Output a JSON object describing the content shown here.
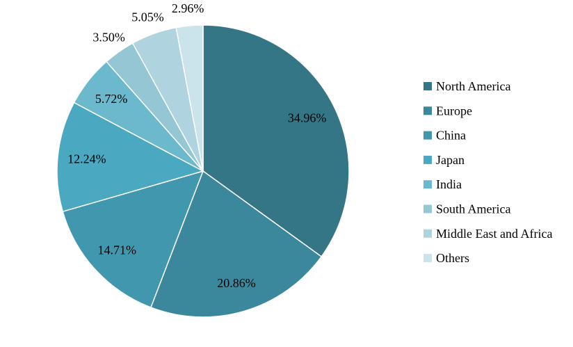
{
  "chart_data": {
    "type": "pie",
    "title": "",
    "start_angle_deg": 0,
    "direction": "clockwise",
    "legend_position": "right",
    "slices": [
      {
        "label": "North America",
        "value": 34.96,
        "display": "34.96%",
        "color": "#347586",
        "label_placement": "inside"
      },
      {
        "label": "Europe",
        "value": 20.86,
        "display": "20.86%",
        "color": "#3b889d",
        "label_placement": "inside"
      },
      {
        "label": "China",
        "value": 14.71,
        "display": "14.71%",
        "color": "#4197ad",
        "label_placement": "inside"
      },
      {
        "label": "Japan",
        "value": 12.24,
        "display": "12.24%",
        "color": "#4aa8c1",
        "label_placement": "inside"
      },
      {
        "label": "India",
        "value": 5.72,
        "display": "5.72%",
        "color": "#6cb8cc",
        "label_placement": "inside"
      },
      {
        "label": "South America",
        "value": 3.5,
        "display": "3.50%",
        "color": "#94c6d4",
        "label_placement": "outside"
      },
      {
        "label": "Middle East and Africa",
        "value": 5.05,
        "display": "5.05%",
        "color": "#afd3df",
        "label_placement": "outside"
      },
      {
        "label": "Others",
        "value": 2.96,
        "display": "2.96%",
        "color": "#cbe3eb",
        "label_placement": "outside"
      }
    ]
  }
}
